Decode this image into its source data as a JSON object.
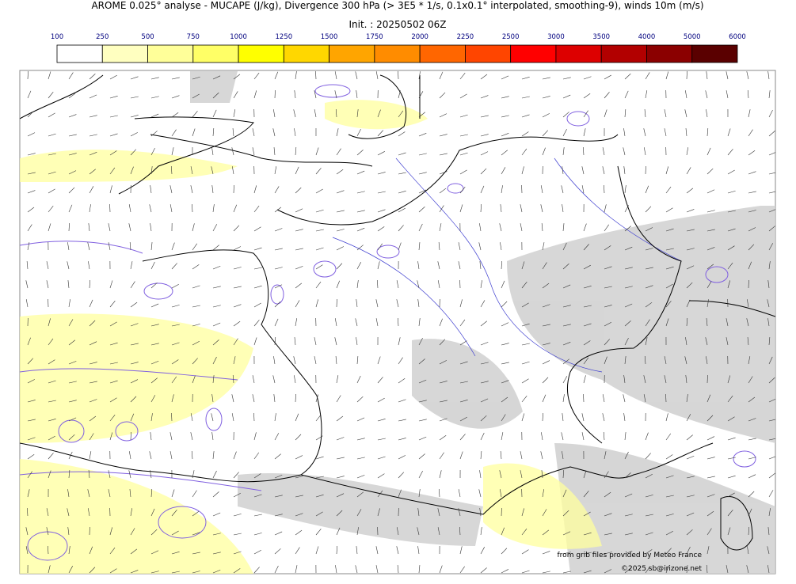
{
  "header": {
    "title": "AROME 0.025° analyse - MUCAPE (J/kg), Divergence 300 hPa (> 3E5 * 1/s, 0.1x0.1° interpolated, smoothing-9), winds 10m (m/s)",
    "init": "Init. : 20250502 06Z"
  },
  "colorbar": {
    "levels": [
      100,
      250,
      500,
      750,
      1000,
      1250,
      1500,
      1750,
      2000,
      2250,
      2500,
      3000,
      3500,
      4000,
      5000,
      6000
    ],
    "colors": [
      "#ffffff",
      "#ffffc0",
      "#ffff99",
      "#ffff66",
      "#ffff00",
      "#ffd700",
      "#ffa500",
      "#ff8c00",
      "#ff6600",
      "#ff4500",
      "#ff0000",
      "#dd0000",
      "#b20000",
      "#8b0000",
      "#5a0000"
    ]
  },
  "credits": [
    "from grib files provided by Meteo France",
    "©2025 sb@irizone.net"
  ]
}
